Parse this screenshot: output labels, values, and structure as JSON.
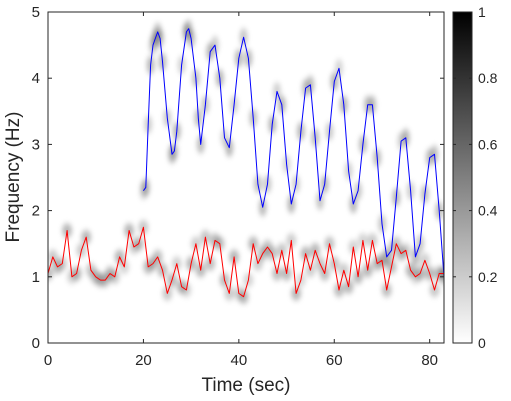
{
  "chart_data": {
    "type": "line",
    "title": "",
    "xlabel": "Time (sec)",
    "ylabel": "Frequency (Hz)",
    "xlim": [
      0,
      83
    ],
    "ylim": [
      0,
      5
    ],
    "x_ticks": [
      "0",
      "20",
      "40",
      "60",
      "80"
    ],
    "y_ticks": [
      "0",
      "1",
      "2",
      "3",
      "4",
      "5"
    ],
    "grid": false,
    "background": "grayscale time-frequency heatmap",
    "colorbar": {
      "range": [
        0,
        1
      ],
      "ticks": [
        "0",
        "0.2",
        "0.4",
        "0.6",
        "0.8",
        "1"
      ],
      "colormap": "white-to-black"
    },
    "series": [
      {
        "color": "#0000ff",
        "x": [
          20.0,
          20.5,
          21.0,
          21.5,
          22.0,
          22.5,
          23.0,
          23.5,
          24.0,
          25.0,
          26.0,
          26.5,
          27.0,
          28.0,
          29.0,
          29.5,
          30.0,
          31.0,
          31.5,
          32.0,
          33.0,
          34.0,
          35.0,
          36.0,
          37.0,
          38.0,
          39.0,
          40.0,
          41.0,
          42.0,
          43.0,
          44.0,
          45.0,
          46.0,
          47.0,
          48.0,
          49.0,
          50.0,
          51.0,
          52.0,
          53.0,
          54.0,
          55.0,
          56.0,
          57.0,
          58.0,
          59.0,
          60.0,
          61.0,
          62.0,
          63.0,
          64.0,
          65.0,
          66.0,
          67.0,
          68.0,
          69.0,
          70.0,
          71.0,
          72.0,
          73.0,
          74.0,
          75.0,
          76.0,
          77.0,
          78.0,
          79.0,
          80.0,
          81.0,
          82.0,
          83.0
        ],
        "y": [
          2.3,
          2.35,
          3.3,
          4.2,
          4.5,
          4.6,
          4.7,
          4.6,
          4.25,
          3.4,
          2.85,
          2.9,
          3.2,
          4.2,
          4.7,
          4.75,
          4.6,
          4.0,
          3.4,
          3.0,
          3.6,
          4.4,
          4.5,
          4.0,
          3.1,
          2.95,
          3.6,
          4.3,
          4.62,
          4.3,
          3.4,
          2.4,
          2.05,
          2.4,
          3.3,
          3.8,
          3.6,
          2.7,
          2.1,
          2.4,
          3.2,
          3.85,
          3.9,
          3.1,
          2.15,
          2.4,
          3.2,
          3.95,
          4.15,
          3.6,
          2.6,
          2.1,
          2.3,
          3.0,
          3.6,
          3.6,
          2.8,
          1.8,
          1.3,
          1.4,
          2.2,
          3.05,
          3.1,
          2.3,
          1.3,
          1.5,
          2.25,
          2.8,
          2.85,
          2.0,
          1.0
        ]
      },
      {
        "color": "#ff0000",
        "x": [
          0,
          1,
          2,
          3,
          4,
          5,
          6,
          7,
          8,
          9,
          10,
          11,
          12,
          13,
          14,
          15,
          16,
          17,
          18,
          19,
          20,
          21,
          22,
          23,
          24,
          25,
          26,
          27,
          28,
          29,
          30,
          31,
          32,
          33,
          34,
          35,
          36,
          37,
          38,
          39,
          40,
          41,
          42,
          43,
          44,
          45,
          46,
          47,
          48,
          49,
          50,
          51,
          52,
          53,
          54,
          55,
          56,
          57,
          58,
          59,
          60,
          61,
          62,
          63,
          64,
          65,
          66,
          67,
          68,
          69,
          70,
          71,
          72,
          73,
          74,
          75,
          76,
          77,
          78,
          79,
          80,
          81,
          82,
          83
        ],
        "y": [
          1.05,
          1.3,
          1.15,
          1.2,
          1.7,
          1.0,
          1.05,
          1.4,
          1.6,
          1.1,
          1.0,
          0.95,
          0.95,
          1.05,
          1.0,
          1.3,
          1.15,
          1.7,
          1.45,
          1.5,
          1.75,
          1.15,
          1.2,
          1.3,
          1.1,
          0.75,
          0.95,
          1.2,
          0.85,
          0.8,
          1.2,
          1.5,
          1.1,
          1.6,
          1.2,
          1.55,
          1.5,
          0.95,
          0.75,
          1.3,
          0.75,
          0.7,
          0.95,
          1.5,
          1.2,
          1.35,
          1.45,
          1.35,
          1.05,
          1.4,
          1.05,
          1.55,
          0.75,
          0.95,
          1.35,
          1.1,
          1.4,
          1.2,
          1.05,
          1.5,
          1.2,
          0.8,
          1.1,
          0.85,
          1.45,
          1.0,
          1.55,
          1.1,
          1.55,
          1.2,
          1.25,
          0.8,
          1.15,
          1.5,
          1.35,
          1.4,
          1.1,
          1.0,
          1.05,
          1.25,
          1.05,
          0.8,
          1.05,
          1.05
        ]
      }
    ]
  }
}
